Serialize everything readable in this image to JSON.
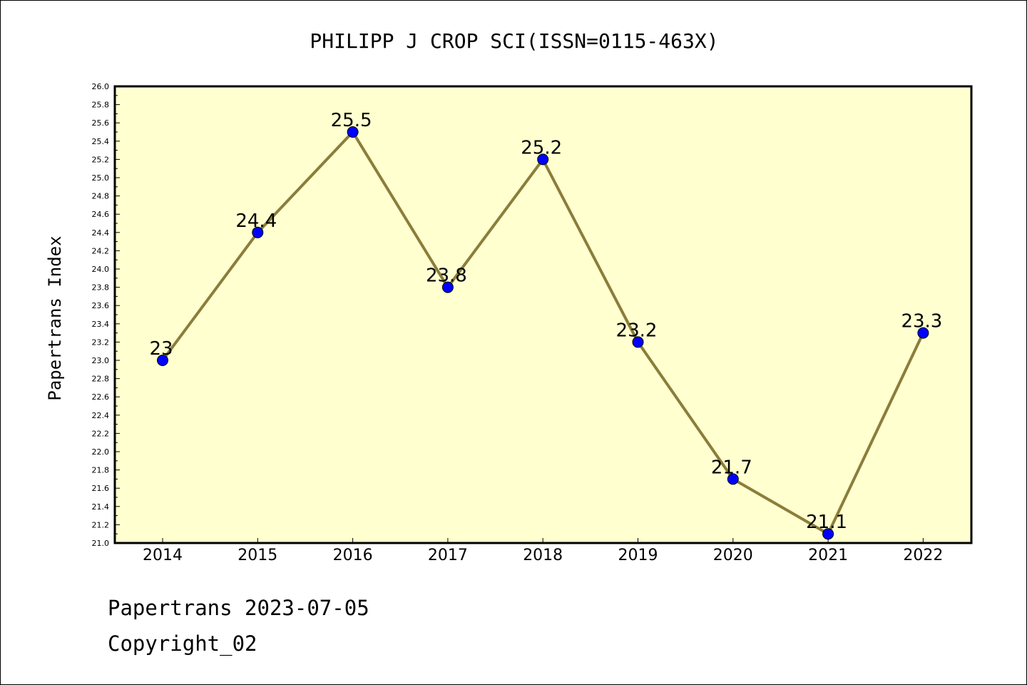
{
  "chart_data": {
    "type": "line",
    "title": "PHILIPP J CROP SCI(ISSN=0115-463X)",
    "ylabel": "Papertrans Index",
    "xlabel": "",
    "categories": [
      "2014",
      "2015",
      "2016",
      "2017",
      "2018",
      "2019",
      "2020",
      "2021",
      "2022"
    ],
    "series": [
      {
        "values": [
          23.0,
          24.4,
          25.5,
          23.8,
          25.2,
          23.2,
          21.7,
          21.1,
          23.3
        ],
        "labels": [
          "23",
          "24.4",
          "25.5",
          "23.8",
          "25.2",
          "23.2",
          "21.7",
          "21.1",
          "23.3"
        ]
      }
    ],
    "ylim": [
      21.0,
      26.0
    ],
    "yticks": [
      "21.0",
      "21.2",
      "21.4",
      "21.6",
      "21.8",
      "22.0",
      "22.2",
      "22.4",
      "22.6",
      "22.8",
      "23.0",
      "23.2",
      "23.4",
      "23.6",
      "23.8",
      "24.0",
      "24.2",
      "24.4",
      "24.6",
      "24.8",
      "25.0",
      "25.2",
      "25.4",
      "25.6",
      "25.8",
      "26.0"
    ],
    "grid": false,
    "legend": "none",
    "colors": {
      "plot_background": "#ffffd0",
      "line": "#8b7d3a",
      "marker": "#0000ff"
    }
  },
  "footer": {
    "line1": "Papertrans 2023-07-05",
    "line2": "Copyright_02"
  }
}
